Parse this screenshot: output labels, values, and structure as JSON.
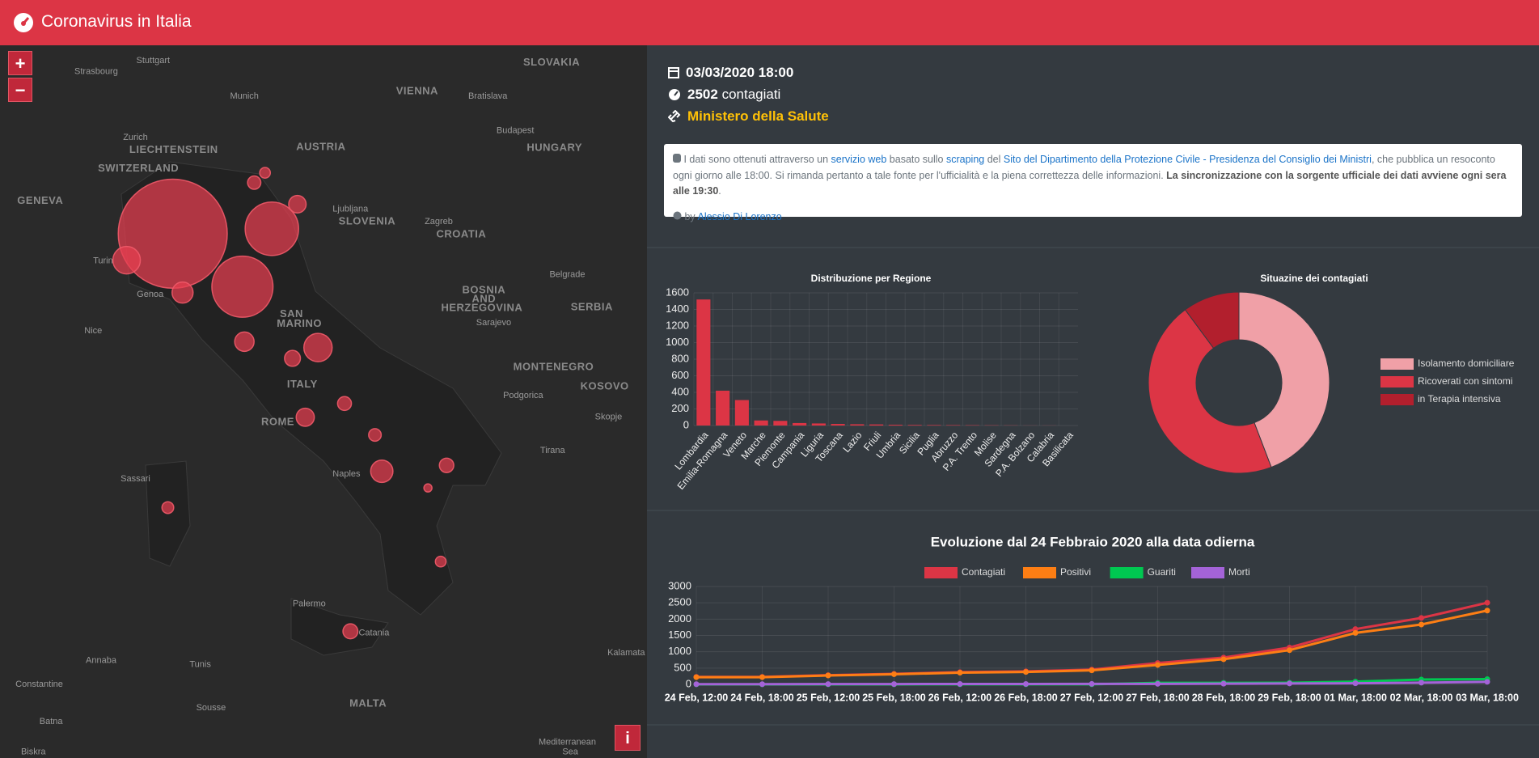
{
  "header": {
    "title": "Coronavirus in Italia"
  },
  "map": {
    "controls": {
      "zoom_in": "+",
      "zoom_out": "−",
      "info": "i"
    },
    "labels": [
      "Stuttgart",
      "Strasbourg",
      "Munich",
      "VIENNA",
      "Bratislava",
      "SLOVAKIA",
      "AUSTRIA",
      "Budapest",
      "HUNGARY",
      "LIECHTENSTEIN",
      "Zurich",
      "SWITZERLAND",
      "GENEVA",
      "Ljubljana",
      "SLOVENIA",
      "Zagreb",
      "CROATIA",
      "Turin",
      "Genoa",
      "Nice",
      "BOSNIA",
      "AND",
      "HERZEGOVINA",
      "Sarajevo",
      "SERBIA",
      "Belgrade",
      "SAN",
      "MARINO",
      "ITALY",
      "MONTENEGRO",
      "Podgorica",
      "KOSOVO",
      "ROME",
      "Skopje",
      "Tirana",
      "Naples",
      "Sassari",
      "Palermo",
      "Catania",
      "Tunis",
      "Annaba",
      "Constantine",
      "Sousse",
      "MALTA",
      "Batna",
      "Biskra",
      "Kalamata",
      "Mediterranean",
      "Sea"
    ]
  },
  "summary": {
    "date": "03/03/2020 18:00",
    "count": 2502,
    "count_label": "contagiati",
    "source": "Ministero della Salute"
  },
  "info": {
    "segments": [
      {
        "text": " I dati sono ottenuti attraverso un "
      },
      {
        "text": "servizio web",
        "link": true
      },
      {
        "text": " basato sullo "
      },
      {
        "text": "scraping",
        "link": true
      },
      {
        "text": " del "
      },
      {
        "text": "Sito del Dipartimento della Protezione Civile - Presidenza del Consiglio dei Ministri",
        "link": true
      },
      {
        "text": ", che pubblica un resoconto ogni giorno alle 18:00. Si rimanda pertanto a tale fonte per l'ufficialità e la piena correttezza delle informazioni. "
      },
      {
        "text": "La sincronizzazione con la sorgente ufficiale dei dati avviene ogni sera alle 19:30",
        "bold": true
      },
      {
        "text": "."
      }
    ],
    "by": "by",
    "author": "Alessio Di Lorenzo"
  },
  "chart_data": [
    {
      "type": "bar",
      "title": "Distribuzione per Regione",
      "categories": [
        "Lombardia",
        "Emilia-Romagna",
        "Veneto",
        "Marche",
        "Piemonte",
        "Campania",
        "Liguria",
        "Toscana",
        "Lazio",
        "Friuli",
        "Umbria",
        "Sicilia",
        "Puglia",
        "Abruzzo",
        "P.A. Trento",
        "Molise",
        "Sardegna",
        "P.A. Bolzano",
        "Calabria",
        "Basilicata"
      ],
      "values": [
        1520,
        420,
        307,
        61,
        56,
        30,
        25,
        19,
        15,
        13,
        9,
        7,
        6,
        5,
        4,
        3,
        2,
        1,
        1,
        0
      ],
      "color": "#dc3545",
      "ylim": [
        0,
        1600
      ],
      "yticks": [
        0,
        200,
        400,
        600,
        800,
        1000,
        1200,
        1400,
        1600
      ],
      "grid": true
    },
    {
      "type": "doughnut",
      "title": "Situazine dei contagiati",
      "categories": [
        "Isolamento domiciliare",
        "Ricoverati con sintomi",
        "in Terapia intensiva"
      ],
      "values": [
        1000,
        1034,
        229
      ],
      "colors": [
        "#f0a0a7",
        "#dc3545",
        "#b21f2d"
      ],
      "legend": "right"
    },
    {
      "type": "line",
      "title": "Evoluzione dal 24 Febbraio 2020 alla data odierna",
      "categories": [
        "24 Feb, 12:00",
        "24 Feb, 18:00",
        "25 Feb, 12:00",
        "25 Feb, 18:00",
        "26 Feb, 12:00",
        "26 Feb, 18:00",
        "27 Feb, 12:00",
        "27 Feb, 18:00",
        "28 Feb, 18:00",
        "29 Feb, 18:00",
        "01 Mar, 18:00",
        "02 Mar, 18:00",
        "03 Mar, 18:00"
      ],
      "series": [
        {
          "name": "Contagiati",
          "color": "#dc3545",
          "values": [
            229,
            229,
            283,
            322,
            374,
            400,
            453,
            655,
            821,
            1128,
            1694,
            2036,
            2502
          ]
        },
        {
          "name": "Positivi",
          "color": "#fd7e14",
          "values": [
            221,
            221,
            272,
            311,
            358,
            381,
            430,
            596,
            770,
            1049,
            1577,
            1835,
            2263
          ]
        },
        {
          "name": "Guariti",
          "color": "#00c851",
          "values": [
            1,
            1,
            1,
            1,
            3,
            3,
            3,
            45,
            46,
            50,
            83,
            149,
            160
          ]
        },
        {
          "name": "Morti",
          "color": "#a463d8",
          "values": [
            7,
            7,
            10,
            10,
            12,
            12,
            14,
            17,
            21,
            29,
            34,
            52,
            79
          ]
        }
      ],
      "ylim": [
        0,
        3000
      ],
      "yticks": [
        0,
        500,
        1000,
        1500,
        2000,
        2500,
        3000
      ],
      "grid": true,
      "legend": "top"
    }
  ]
}
